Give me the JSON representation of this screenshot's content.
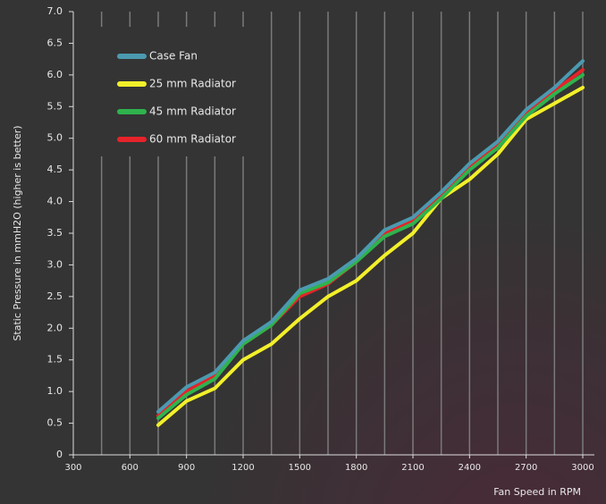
{
  "chart_data": {
    "type": "line",
    "y_label": "Static Pressure in mmH2O (higher is better)",
    "x_label": "Fan Speed in RPM",
    "x": [
      750,
      900,
      1050,
      1200,
      1350,
      1500,
      1650,
      1800,
      1950,
      2100,
      2250,
      2400,
      2550,
      2700,
      2850,
      3000
    ],
    "series": [
      {
        "name": "Case Fan",
        "color": "#4b9ab0",
        "values": [
          0.68,
          1.07,
          1.3,
          1.8,
          2.1,
          2.6,
          2.78,
          3.1,
          3.55,
          3.75,
          4.15,
          4.6,
          4.95,
          5.45,
          5.8,
          6.22
        ]
      },
      {
        "name": "25 mm Radiator",
        "color": "#f2f02a",
        "values": [
          0.47,
          0.85,
          1.05,
          1.5,
          1.75,
          2.15,
          2.5,
          2.75,
          3.15,
          3.5,
          4.05,
          4.35,
          4.75,
          5.3,
          5.55,
          5.8
        ]
      },
      {
        "name": "45 mm Radiator",
        "color": "#2fb34c",
        "values": [
          0.58,
          0.95,
          1.2,
          1.75,
          2.05,
          2.55,
          2.72,
          3.05,
          3.45,
          3.65,
          4.05,
          4.5,
          4.85,
          5.35,
          5.7,
          6.0
        ]
      },
      {
        "name": "60 mm Radiator",
        "color": "#e6232a",
        "values": [
          0.62,
          1.0,
          1.25,
          1.75,
          2.05,
          2.5,
          2.7,
          3.05,
          3.5,
          3.7,
          4.1,
          4.55,
          4.9,
          5.4,
          5.75,
          6.08
        ]
      }
    ],
    "xlim": [
      300,
      3000
    ],
    "xticks": [
      300,
      600,
      900,
      1200,
      1500,
      1800,
      2100,
      2400,
      2700,
      3000
    ],
    "xgrid": [
      450,
      600,
      750,
      900,
      1050,
      1200,
      1350,
      1500,
      1650,
      1800,
      1950,
      2100,
      2250,
      2400,
      2550,
      2700,
      2850,
      3000
    ],
    "ylim": [
      0,
      7
    ],
    "yticks": [
      0,
      0.5,
      {
        "value": 1,
        "label": "1.0"
      },
      1.5,
      {
        "value": 2,
        "label": "2.0"
      },
      2.5,
      {
        "value": 3,
        "label": "3.0"
      },
      3.5,
      {
        "value": 4,
        "label": "4.0"
      },
      4.5,
      {
        "value": 5,
        "label": "5.0"
      },
      5.5,
      {
        "value": 6,
        "label": "6.0"
      },
      6.5,
      {
        "value": 7,
        "label": "7.0"
      }
    ],
    "legend": "upper left"
  }
}
